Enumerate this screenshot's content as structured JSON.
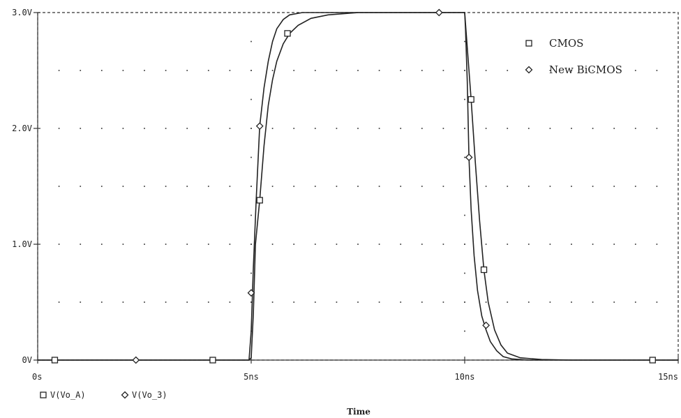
{
  "chart_data": {
    "type": "line",
    "xlabel": "Time",
    "ylabel": "",
    "xlim": [
      0,
      15
    ],
    "ylim": [
      0,
      3
    ],
    "x_ticks": [
      0,
      5,
      10,
      15
    ],
    "x_tick_labels": [
      "0s",
      "5ns",
      "10ns",
      "15ns"
    ],
    "y_ticks": [
      0,
      1,
      2,
      3
    ],
    "y_tick_labels": [
      "0V",
      "1.0V",
      "2.0V",
      "3.0V"
    ],
    "grid": "dotted",
    "legend": {
      "placement": "top-right",
      "items": [
        {
          "marker": "square",
          "label": "CMOS"
        },
        {
          "marker": "diamond",
          "label": "New BiCMOS"
        }
      ]
    },
    "trace_legend": [
      {
        "marker": "square",
        "label": "V(Vo_A)"
      },
      {
        "marker": "diamond",
        "label": "V(Vo_3)"
      }
    ],
    "series": [
      {
        "name": "CMOS",
        "marker": "square",
        "color": "#222222",
        "points": [
          [
            0,
            0
          ],
          [
            4.95,
            0
          ],
          [
            5.0,
            0.02
          ],
          [
            5.05,
            0.4
          ],
          [
            5.1,
            1.0
          ],
          [
            5.2,
            1.38
          ],
          [
            5.3,
            1.85
          ],
          [
            5.4,
            2.2
          ],
          [
            5.5,
            2.42
          ],
          [
            5.6,
            2.58
          ],
          [
            5.75,
            2.73
          ],
          [
            5.9,
            2.82
          ],
          [
            6.1,
            2.89
          ],
          [
            6.4,
            2.95
          ],
          [
            6.8,
            2.98
          ],
          [
            7.5,
            3.0
          ],
          [
            10.0,
            3.0
          ],
          [
            10.02,
            2.9
          ],
          [
            10.08,
            2.6
          ],
          [
            10.15,
            2.25
          ],
          [
            10.25,
            1.7
          ],
          [
            10.35,
            1.2
          ],
          [
            10.45,
            0.78
          ],
          [
            10.55,
            0.5
          ],
          [
            10.7,
            0.26
          ],
          [
            10.85,
            0.13
          ],
          [
            11.0,
            0.06
          ],
          [
            11.3,
            0.02
          ],
          [
            11.8,
            0.005
          ],
          [
            12.5,
            0
          ],
          [
            15,
            0
          ]
        ],
        "marker_points": [
          [
            0.4,
            0
          ],
          [
            4.1,
            0
          ],
          [
            5.2,
            1.38
          ],
          [
            5.85,
            2.82
          ],
          [
            10.15,
            2.25
          ],
          [
            10.45,
            0.78
          ],
          [
            14.4,
            0
          ]
        ]
      },
      {
        "name": "New BiCMOS",
        "marker": "diamond",
        "color": "#222222",
        "points": [
          [
            0,
            0
          ],
          [
            4.95,
            0
          ],
          [
            5.0,
            0.25
          ],
          [
            5.05,
            0.8
          ],
          [
            5.12,
            1.4
          ],
          [
            5.2,
            2.02
          ],
          [
            5.3,
            2.35
          ],
          [
            5.4,
            2.58
          ],
          [
            5.5,
            2.75
          ],
          [
            5.6,
            2.86
          ],
          [
            5.75,
            2.94
          ],
          [
            5.9,
            2.98
          ],
          [
            6.2,
            3.0
          ],
          [
            10.0,
            3.0
          ],
          [
            10.02,
            2.85
          ],
          [
            10.06,
            2.4
          ],
          [
            10.1,
            1.75
          ],
          [
            10.15,
            1.3
          ],
          [
            10.22,
            0.9
          ],
          [
            10.3,
            0.6
          ],
          [
            10.4,
            0.38
          ],
          [
            10.5,
            0.26
          ],
          [
            10.6,
            0.16
          ],
          [
            10.75,
            0.08
          ],
          [
            10.9,
            0.03
          ],
          [
            11.1,
            0.01
          ],
          [
            11.5,
            0
          ],
          [
            15,
            0
          ]
        ],
        "marker_points": [
          [
            2.3,
            0
          ],
          [
            5.0,
            0.58
          ],
          [
            5.2,
            2.02
          ],
          [
            9.4,
            3.0
          ],
          [
            10.1,
            1.75
          ],
          [
            10.5,
            0.3
          ]
        ]
      }
    ]
  }
}
